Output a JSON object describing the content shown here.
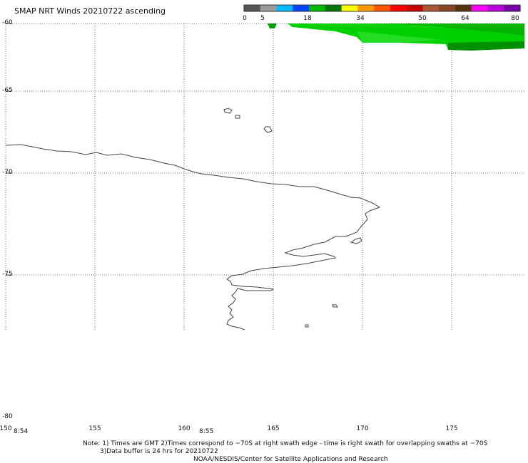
{
  "title": "SMAP NRT Winds 20210722 ascending",
  "colorbar": {
    "ticks": [
      "0",
      "5",
      "18",
      "34",
      "50",
      "64",
      "80"
    ],
    "segment_colors": [
      "#555555",
      "#999999",
      "#00bbff",
      "#0044ff",
      "#00bb00",
      "#007700",
      "#ffff00",
      "#ff9900",
      "#ff5500",
      "#ff0000",
      "#cc0000",
      "#aa5533",
      "#884422",
      "#553311",
      "#ff00ff",
      "#bb00dd",
      "#7700aa"
    ]
  },
  "lat_labels": [
    "-60",
    "-65",
    "-70",
    "-75",
    "-80"
  ],
  "lon_labels": [
    "150",
    "155",
    "160",
    "165",
    "170",
    "175"
  ],
  "times": [
    "8:54",
    "8:55"
  ],
  "notes": {
    "line1": "Note: 1) Times are GMT 2)Times correspond to ~70S at right swath edge - time is right swath for overlapping swaths at ~70S",
    "line2": "3)Data buffer is 24 hrs for 20210722",
    "line3": "NOAA/NESDIS/Center for Satellite Applications and Research"
  },
  "swath_colors": [
    "#00b400",
    "#00d800",
    "#009a00"
  ]
}
